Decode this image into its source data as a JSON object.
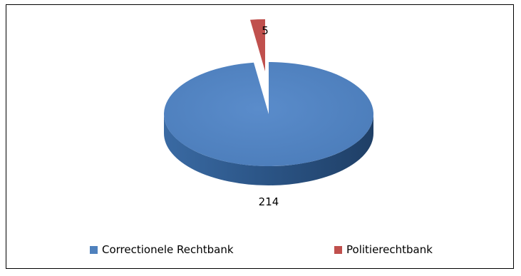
{
  "chart_data": {
    "type": "pie",
    "title": "",
    "style": "3d-exploded",
    "legend_position": "bottom",
    "slices": [
      {
        "name": "Correctionele Rechtbank",
        "value": 214,
        "label": "214",
        "color": "#4f81bd",
        "side_color": "#2e5a8f"
      },
      {
        "name": "Politierechtbank",
        "value": 5,
        "label": "5",
        "color": "#c0504d",
        "side_color": "#8c2f2d"
      }
    ]
  }
}
